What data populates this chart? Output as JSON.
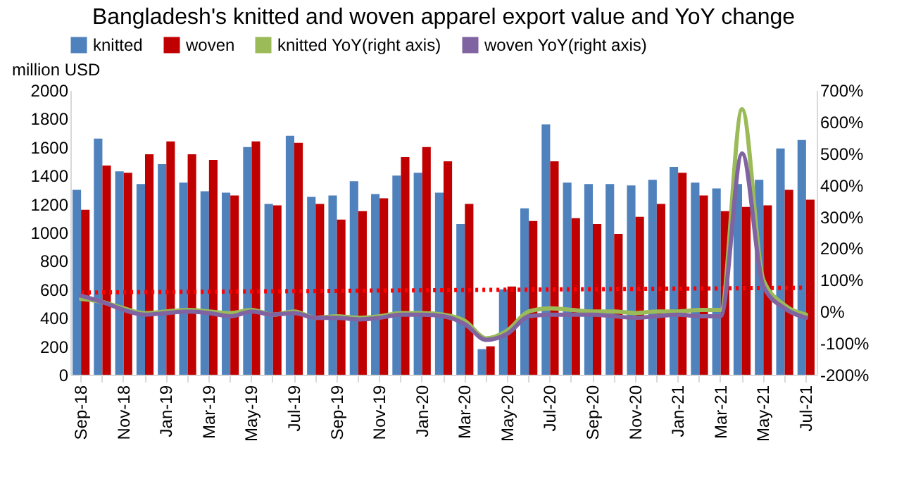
{
  "chart_data": {
    "type": "bar",
    "title": "Bangladesh's knitted and woven apparel export value and YoY change",
    "ylabel": "million  USD",
    "categories": [
      "Sep-18",
      null,
      "Nov-18",
      null,
      "Jan-19",
      null,
      "Mar-19",
      null,
      "May-19",
      null,
      "Jul-19",
      null,
      "Sep-19",
      null,
      "Nov-19",
      null,
      "Jan-20",
      null,
      "Mar-20",
      null,
      "May-20",
      null,
      "Jul-20",
      null,
      "Sep-20",
      null,
      "Nov-20",
      null,
      "Jan-21",
      null,
      "Mar-21",
      null,
      "May-21",
      null,
      "Jul-21"
    ],
    "series": [
      {
        "name": "knitted",
        "color": "#4f81bd",
        "values": [
          1300,
          1660,
          1430,
          1340,
          1480,
          1350,
          1290,
          1280,
          1600,
          1200,
          1680,
          1250,
          1260,
          1360,
          1270,
          1400,
          1420,
          1280,
          1060,
          180,
          600,
          1170,
          1760,
          1350,
          1340,
          1340,
          1330,
          1370,
          1460,
          1350,
          1310,
          1340,
          1370,
          1590,
          1650
        ]
      },
      {
        "name": "woven",
        "color": "#c00000",
        "values": [
          1160,
          1470,
          1420,
          1550,
          1640,
          1550,
          1510,
          1260,
          1640,
          1190,
          1630,
          1200,
          1090,
          1150,
          1240,
          1530,
          1600,
          1500,
          1200,
          200,
          620,
          1080,
          1500,
          1100,
          1060,
          990,
          1110,
          1200,
          1420,
          1260,
          1150,
          1180,
          1190,
          1300,
          1230
        ]
      },
      {
        "name": "knitted YoY(right axis)",
        "color": "#9bbb59",
        "type": "line",
        "axis": "y2",
        "values": [
          40,
          30,
          10,
          -5,
          0,
          5,
          0,
          -5,
          5,
          -10,
          0,
          -20,
          -15,
          -20,
          -15,
          -5,
          -5,
          -10,
          -30,
          -85,
          -60,
          0,
          10,
          5,
          0,
          0,
          -5,
          0,
          0,
          5,
          5,
          640,
          100,
          20,
          -10
        ]
      },
      {
        "name": "woven YoY(right axis)",
        "color": "#8064a2",
        "type": "line",
        "axis": "y2",
        "values": [
          50,
          30,
          5,
          -10,
          -5,
          0,
          -5,
          -15,
          0,
          -10,
          -5,
          -20,
          -20,
          -25,
          -20,
          -10,
          -10,
          -15,
          -40,
          -90,
          -70,
          -15,
          -10,
          -10,
          -10,
          -15,
          -20,
          -15,
          -10,
          -15,
          -15,
          500,
          80,
          10,
          -20
        ]
      },
      {
        "color": "#ff0000",
        "type": "line",
        "axis": "y2",
        "line_style": "dotted",
        "x": [
          "Sep-18",
          "Jul-21"
        ],
        "values": [
          60,
          75
        ]
      }
    ],
    "ylim": [
      0,
      2000
    ],
    "yticks": [
      0,
      200,
      400,
      600,
      800,
      1000,
      1200,
      1400,
      1600,
      1800,
      2000
    ],
    "y2lim": [
      -200,
      700
    ],
    "y2ticks": [
      {
        "value": -200,
        "label": "-200%"
      },
      {
        "value": -100,
        "label": "-100%"
      },
      {
        "value": 0,
        "label": "0%"
      },
      {
        "value": 100,
        "label": "100%"
      },
      {
        "value": 200,
        "label": "200%"
      },
      {
        "value": 300,
        "label": "300%"
      },
      {
        "value": 400,
        "label": "400%"
      },
      {
        "value": 500,
        "label": "500%"
      },
      {
        "value": 600,
        "label": "600%"
      },
      {
        "value": 700,
        "label": "700%"
      }
    ],
    "legend": "top"
  }
}
